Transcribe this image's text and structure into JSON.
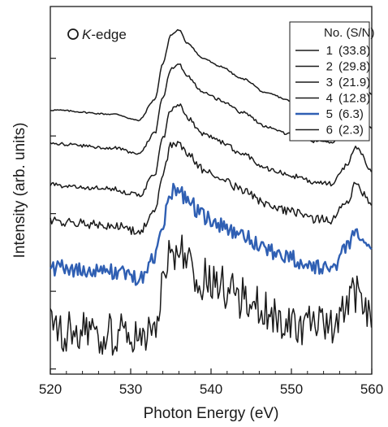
{
  "chart_data": {
    "type": "line",
    "xlabel": "Photon Energy (eV)",
    "ylabel": "Intensity (arb. units)",
    "xlim": [
      520,
      560
    ],
    "x_ticks": [
      520,
      530,
      540,
      550,
      560
    ],
    "y_ticks_labeled": false,
    "grid": false,
    "annotation": {
      "element": "O",
      "edge": "K",
      "suffix": "-edge"
    },
    "legend": {
      "position": "top-right",
      "header": "No. (S/N)",
      "entries": [
        {
          "no": "1",
          "sn": "(33.8)"
        },
        {
          "no": "2",
          "sn": "(29.8)"
        },
        {
          "no": "3",
          "sn": "(21.9)"
        },
        {
          "no": "4",
          "sn": "(12.8)"
        },
        {
          "no": "5",
          "sn": "(6.3)"
        },
        {
          "no": "6",
          "sn": "(2.3)"
        }
      ]
    },
    "series": [
      {
        "name": "1",
        "color": "#1a1a1a",
        "offset": 5.0,
        "noise": 0.015
      },
      {
        "name": "2",
        "color": "#1a1a1a",
        "offset": 4.35,
        "noise": 0.03
      },
      {
        "name": "3",
        "color": "#1a1a1a",
        "offset": 3.55,
        "noise": 0.05
      },
      {
        "name": "4",
        "color": "#1a1a1a",
        "offset": 2.85,
        "noise": 0.085
      },
      {
        "name": "5",
        "color": "#2f5fb3",
        "offset": 1.95,
        "noise": 0.16
      },
      {
        "name": "6",
        "color": "#1a1a1a",
        "offset": 0.75,
        "noise": 0.42
      }
    ],
    "spectrum_shape": {
      "x": [
        520,
        528,
        531,
        533,
        534,
        535,
        536,
        537,
        539,
        541,
        544,
        547,
        550,
        553,
        555,
        557,
        558,
        560
      ],
      "y": [
        0.0,
        -0.08,
        -0.2,
        0.2,
        0.9,
        1.45,
        1.55,
        1.3,
        1.0,
        0.85,
        0.6,
        0.32,
        0.18,
        0.05,
        0.02,
        0.4,
        0.75,
        0.3
      ]
    },
    "ylim": [
      -0.1,
      7.0
    ]
  }
}
